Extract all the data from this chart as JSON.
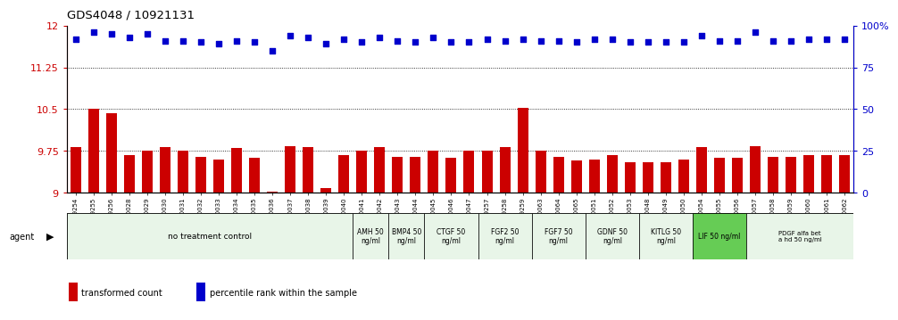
{
  "title": "GDS4048 / 10921131",
  "categories": [
    "GSM509254",
    "GSM509255",
    "GSM509256",
    "GSM510028",
    "GSM510029",
    "GSM510030",
    "GSM510031",
    "GSM510032",
    "GSM510033",
    "GSM510034",
    "GSM510035",
    "GSM510036",
    "GSM510037",
    "GSM510038",
    "GSM510039",
    "GSM510040",
    "GSM510041",
    "GSM510042",
    "GSM510043",
    "GSM510044",
    "GSM510045",
    "GSM510046",
    "GSM510047",
    "GSM509257",
    "GSM509258",
    "GSM509259",
    "GSM510063",
    "GSM510064",
    "GSM510065",
    "GSM510051",
    "GSM510052",
    "GSM510053",
    "GSM510048",
    "GSM510049",
    "GSM510050",
    "GSM510054",
    "GSM510055",
    "GSM510056",
    "GSM510057",
    "GSM510058",
    "GSM510059",
    "GSM510060",
    "GSM510061",
    "GSM510062"
  ],
  "bar_values": [
    9.82,
    10.5,
    10.42,
    9.68,
    9.75,
    9.82,
    9.75,
    9.65,
    9.6,
    9.8,
    9.63,
    9.02,
    9.84,
    9.82,
    9.08,
    9.68,
    9.75,
    9.82,
    9.65,
    9.65,
    9.75,
    9.62,
    9.75,
    9.75,
    9.82,
    10.52,
    9.75,
    9.65,
    9.58,
    9.6,
    9.68,
    9.55,
    9.55,
    9.55,
    9.6,
    9.82,
    9.62,
    9.62,
    9.84,
    9.65,
    9.65,
    9.68,
    9.68,
    9.68
  ],
  "dot_values": [
    92,
    96,
    95,
    93,
    95,
    91,
    91,
    90,
    89,
    91,
    90,
    85,
    94,
    93,
    89,
    92,
    90,
    93,
    91,
    90,
    93,
    90,
    90,
    92,
    91,
    92,
    91,
    91,
    90,
    92,
    92,
    90,
    90,
    90,
    90,
    94,
    91,
    91,
    96,
    91,
    91,
    92,
    92,
    92
  ],
  "ylim_left": [
    9.0,
    12.0
  ],
  "ylim_right": [
    0,
    100
  ],
  "yticks_left": [
    9.0,
    9.75,
    10.5,
    11.25,
    12.0
  ],
  "ytick_labels_left": [
    "9",
    "9.75",
    "10.5",
    "11.25",
    "12"
  ],
  "yticks_right": [
    0,
    25,
    50,
    75,
    100
  ],
  "ytick_labels_right": [
    "0",
    "25",
    "50",
    "75",
    "100%"
  ],
  "hlines": [
    9.75,
    10.5,
    11.25
  ],
  "bar_color": "#cc0000",
  "dot_color": "#0000cc",
  "agent_groups": [
    {
      "label": "no treatment control",
      "start": 0,
      "end": 16,
      "color": "#e8f5e8",
      "fontsize": 6.5
    },
    {
      "label": "AMH 50\nng/ml",
      "start": 16,
      "end": 18,
      "color": "#e8f5e8",
      "fontsize": 5.5
    },
    {
      "label": "BMP4 50\nng/ml",
      "start": 18,
      "end": 20,
      "color": "#e8f5e8",
      "fontsize": 5.5
    },
    {
      "label": "CTGF 50\nng/ml",
      "start": 20,
      "end": 23,
      "color": "#e8f5e8",
      "fontsize": 5.5
    },
    {
      "label": "FGF2 50\nng/ml",
      "start": 23,
      "end": 26,
      "color": "#e8f5e8",
      "fontsize": 5.5
    },
    {
      "label": "FGF7 50\nng/ml",
      "start": 26,
      "end": 29,
      "color": "#e8f5e8",
      "fontsize": 5.5
    },
    {
      "label": "GDNF 50\nng/ml",
      "start": 29,
      "end": 32,
      "color": "#e8f5e8",
      "fontsize": 5.5
    },
    {
      "label": "KITLG 50\nng/ml",
      "start": 32,
      "end": 35,
      "color": "#e8f5e8",
      "fontsize": 5.5
    },
    {
      "label": "LIF 50 ng/ml",
      "start": 35,
      "end": 38,
      "color": "#66cc55",
      "fontsize": 5.5
    },
    {
      "label": "PDGF alfa bet\na hd 50 ng/ml",
      "start": 38,
      "end": 44,
      "color": "#e8f5e8",
      "fontsize": 5.0
    }
  ],
  "legend_items": [
    {
      "label": "transformed count",
      "color": "#cc0000"
    },
    {
      "label": "percentile rank within the sample",
      "color": "#0000cc"
    }
  ],
  "axis_label_color_left": "#cc0000",
  "axis_label_color_right": "#0000cc",
  "title_fontsize": 9.5,
  "bar_width": 0.6,
  "dot_size": 14
}
